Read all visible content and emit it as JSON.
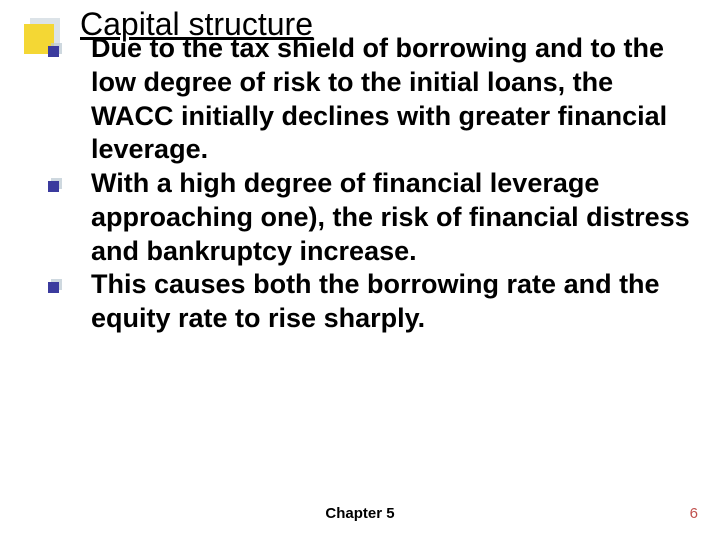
{
  "colors": {
    "corner_front": "#f4d734",
    "corner_shadow": "#b9c8d2",
    "bullet": "#3b3b9e",
    "title": "#000000",
    "text": "#000000",
    "page_num": "#c0504d"
  },
  "title": "Capital structure",
  "bullets": [
    "Due to the tax shield of borrowing and to the low degree of risk to the initial loans, the WACC initially declines with greater financial leverage.",
    "With a high degree of financial leverage approaching one), the risk of financial distress and bankruptcy increase.",
    "This causes both the borrowing rate and the equity rate to rise sharply."
  ],
  "footer": "Chapter 5",
  "page_number": "6"
}
